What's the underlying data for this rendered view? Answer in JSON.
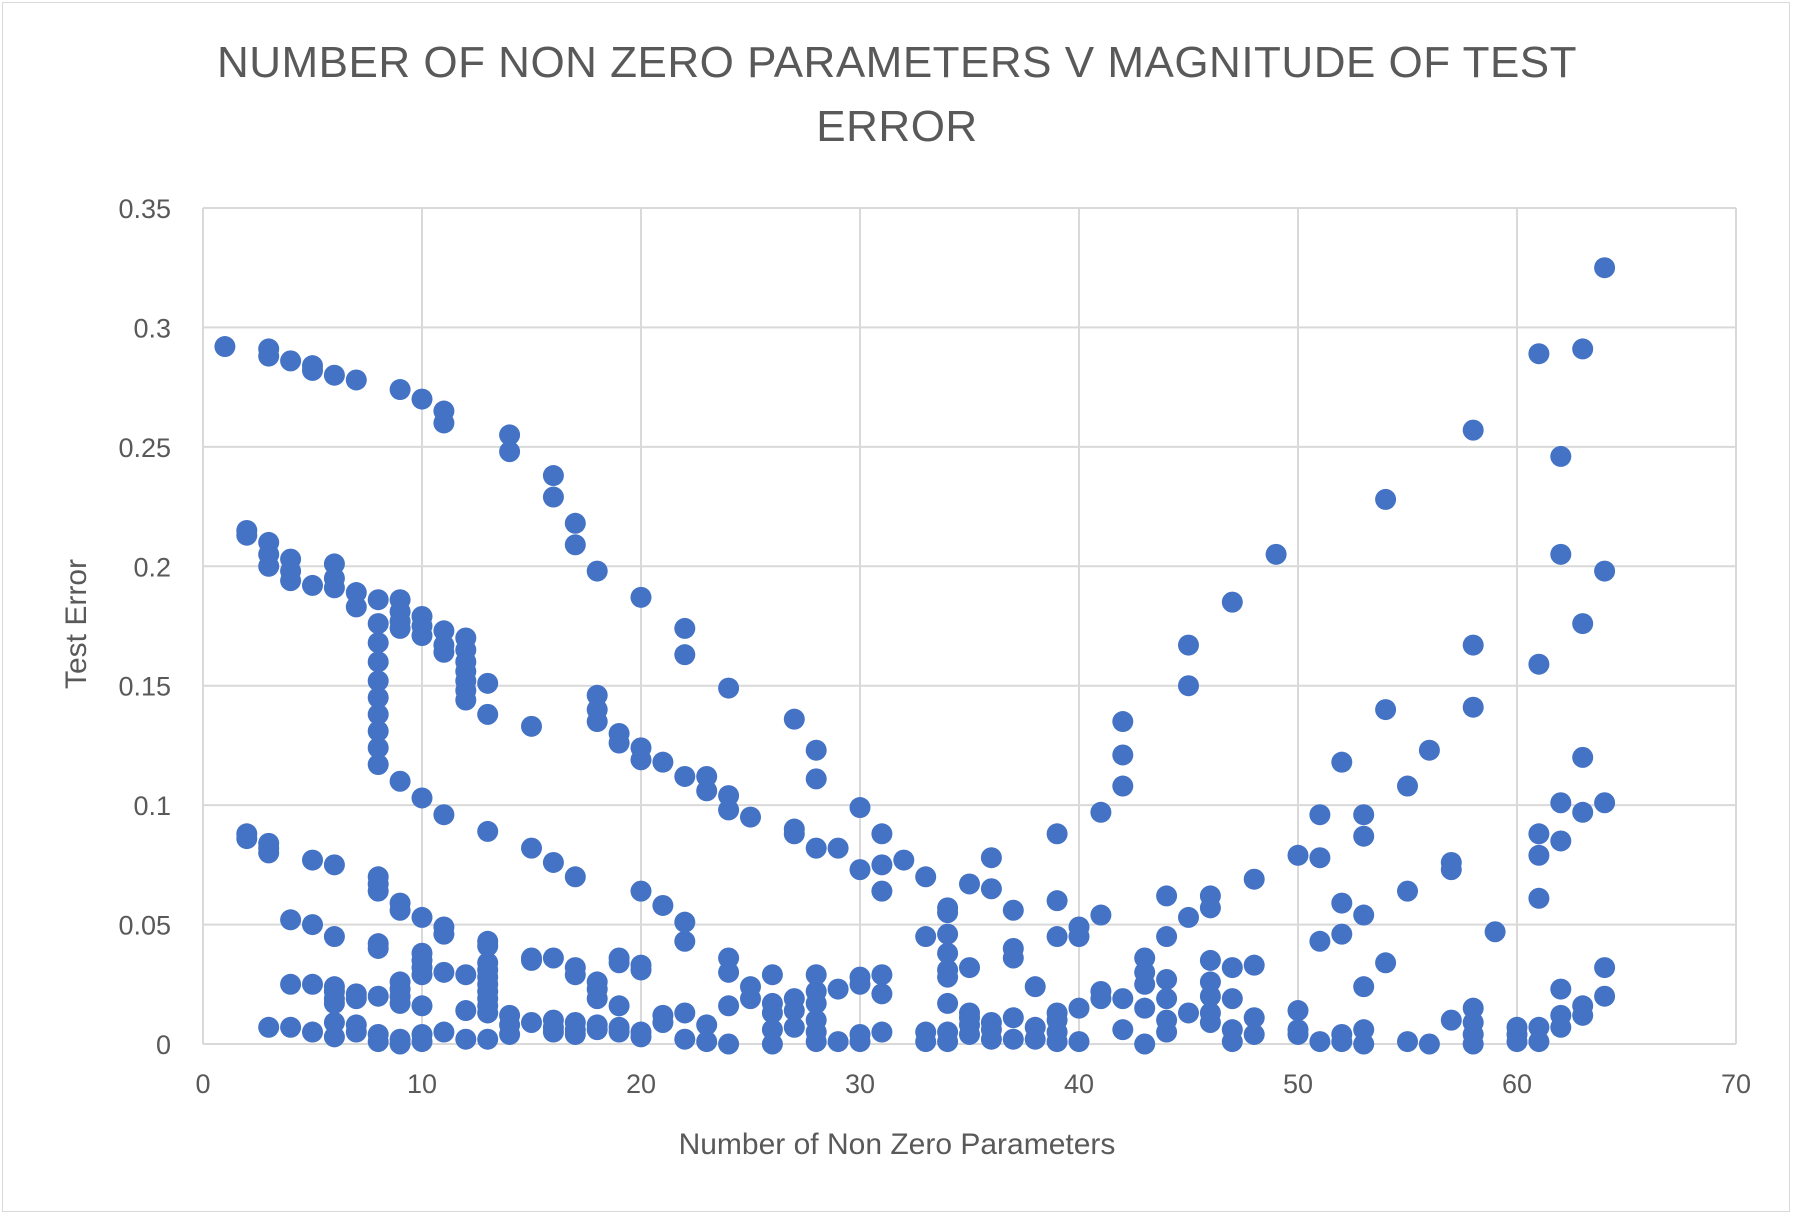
{
  "chart_data": {
    "type": "scatter",
    "title": "NUMBER OF NON ZERO PARAMETERS V MAGNITUDE OF TEST ERROR",
    "title_lines": [
      "NUMBER OF NON ZERO PARAMETERS V MAGNITUDE OF TEST",
      "ERROR"
    ],
    "xlabel": "Number of Non Zero Parameters",
    "ylabel": "Test Error",
    "xlim": [
      0,
      70
    ],
    "ylim": [
      0,
      0.35
    ],
    "xticks": [
      "0",
      "10",
      "20",
      "30",
      "40",
      "50",
      "60",
      "70"
    ],
    "yticks": [
      "0",
      "0.05",
      "0.1",
      "0.15",
      "0.2",
      "0.25",
      "0.3",
      "0.35"
    ],
    "grid": true,
    "legend": "none",
    "marker_color": "#4472c4",
    "points": [
      [
        1,
        0.292
      ],
      [
        3,
        0.291
      ],
      [
        3,
        0.288
      ],
      [
        4,
        0.286
      ],
      [
        5,
        0.284
      ],
      [
        5,
        0.282
      ],
      [
        6,
        0.28
      ],
      [
        7,
        0.278
      ],
      [
        9,
        0.274
      ],
      [
        10,
        0.27
      ],
      [
        11,
        0.265
      ],
      [
        11,
        0.26
      ],
      [
        14,
        0.255
      ],
      [
        14,
        0.248
      ],
      [
        16,
        0.238
      ],
      [
        16,
        0.229
      ],
      [
        17,
        0.218
      ],
      [
        17,
        0.209
      ],
      [
        18,
        0.198
      ],
      [
        20,
        0.187
      ],
      [
        22,
        0.174
      ],
      [
        22,
        0.163
      ],
      [
        24,
        0.149
      ],
      [
        27,
        0.136
      ],
      [
        28,
        0.123
      ],
      [
        28,
        0.111
      ],
      [
        30,
        0.099
      ],
      [
        31,
        0.088
      ],
      [
        31,
        0.075
      ],
      [
        32,
        0.077
      ],
      [
        33,
        0.07
      ],
      [
        35,
        0.067
      ],
      [
        36,
        0.065
      ],
      [
        2,
        0.215
      ],
      [
        2,
        0.213
      ],
      [
        3,
        0.21
      ],
      [
        3,
        0.205
      ],
      [
        3,
        0.2
      ],
      [
        4,
        0.203
      ],
      [
        4,
        0.198
      ],
      [
        4,
        0.194
      ],
      [
        5,
        0.192
      ],
      [
        6,
        0.201
      ],
      [
        6,
        0.195
      ],
      [
        6,
        0.191
      ],
      [
        7,
        0.189
      ],
      [
        7,
        0.183
      ],
      [
        8,
        0.186
      ],
      [
        8,
        0.176
      ],
      [
        8,
        0.168
      ],
      [
        8,
        0.16
      ],
      [
        8,
        0.152
      ],
      [
        8,
        0.145
      ],
      [
        8,
        0.138
      ],
      [
        8,
        0.131
      ],
      [
        8,
        0.124
      ],
      [
        8,
        0.117
      ],
      [
        9,
        0.186
      ],
      [
        9,
        0.181
      ],
      [
        9,
        0.177
      ],
      [
        9,
        0.174
      ],
      [
        10,
        0.179
      ],
      [
        10,
        0.175
      ],
      [
        10,
        0.171
      ],
      [
        11,
        0.173
      ],
      [
        11,
        0.167
      ],
      [
        11,
        0.164
      ],
      [
        12,
        0.17
      ],
      [
        12,
        0.165
      ],
      [
        12,
        0.16
      ],
      [
        12,
        0.156
      ],
      [
        12,
        0.152
      ],
      [
        12,
        0.148
      ],
      [
        12,
        0.144
      ],
      [
        13,
        0.151
      ],
      [
        13,
        0.138
      ],
      [
        18,
        0.146
      ],
      [
        18,
        0.14
      ],
      [
        18,
        0.135
      ],
      [
        19,
        0.13
      ],
      [
        19,
        0.126
      ],
      [
        20,
        0.124
      ],
      [
        20,
        0.119
      ],
      [
        21,
        0.118
      ],
      [
        22,
        0.112
      ],
      [
        23,
        0.112
      ],
      [
        23,
        0.106
      ],
      [
        24,
        0.104
      ],
      [
        24,
        0.098
      ],
      [
        25,
        0.095
      ],
      [
        27,
        0.09
      ],
      [
        27,
        0.088
      ],
      [
        28,
        0.082
      ],
      [
        29,
        0.082
      ],
      [
        30,
        0.073
      ],
      [
        31,
        0.064
      ],
      [
        9,
        0.11
      ],
      [
        10,
        0.103
      ],
      [
        11,
        0.096
      ],
      [
        13,
        0.089
      ],
      [
        15,
        0.133
      ],
      [
        15,
        0.082
      ],
      [
        16,
        0.076
      ],
      [
        17,
        0.07
      ],
      [
        20,
        0.064
      ],
      [
        21,
        0.058
      ],
      [
        22,
        0.051
      ],
      [
        22,
        0.043
      ],
      [
        2,
        0.088
      ],
      [
        2,
        0.086
      ],
      [
        3,
        0.084
      ],
      [
        3,
        0.082
      ],
      [
        3,
        0.08
      ],
      [
        5,
        0.077
      ],
      [
        6,
        0.075
      ],
      [
        8,
        0.07
      ],
      [
        8,
        0.067
      ],
      [
        8,
        0.064
      ],
      [
        9,
        0.059
      ],
      [
        9,
        0.056
      ],
      [
        10,
        0.053
      ],
      [
        11,
        0.049
      ],
      [
        11,
        0.046
      ],
      [
        13,
        0.043
      ],
      [
        13,
        0.041
      ],
      [
        4,
        0.052
      ],
      [
        5,
        0.05
      ],
      [
        6,
        0.045
      ],
      [
        8,
        0.042
      ],
      [
        8,
        0.04
      ],
      [
        10,
        0.038
      ],
      [
        10,
        0.035
      ],
      [
        10,
        0.032
      ],
      [
        10,
        0.029
      ],
      [
        11,
        0.03
      ],
      [
        12,
        0.029
      ],
      [
        13,
        0.034
      ],
      [
        13,
        0.031
      ],
      [
        13,
        0.028
      ],
      [
        13,
        0.025
      ],
      [
        13,
        0.022
      ],
      [
        13,
        0.019
      ],
      [
        13,
        0.016
      ],
      [
        13,
        0.013
      ],
      [
        4,
        0.025
      ],
      [
        5,
        0.025
      ],
      [
        6,
        0.024
      ],
      [
        6,
        0.022
      ],
      [
        6,
        0.019
      ],
      [
        6,
        0.017
      ],
      [
        7,
        0.021
      ],
      [
        7,
        0.019
      ],
      [
        8,
        0.02
      ],
      [
        9,
        0.026
      ],
      [
        9,
        0.023
      ],
      [
        9,
        0.02
      ],
      [
        9,
        0.017
      ],
      [
        10,
        0.016
      ],
      [
        12,
        0.014
      ],
      [
        15,
        0.036
      ],
      [
        15,
        0.035
      ],
      [
        16,
        0.036
      ],
      [
        17,
        0.032
      ],
      [
        17,
        0.029
      ],
      [
        18,
        0.026
      ],
      [
        18,
        0.023
      ],
      [
        18,
        0.019
      ],
      [
        19,
        0.036
      ],
      [
        19,
        0.034
      ],
      [
        19,
        0.016
      ],
      [
        20,
        0.033
      ],
      [
        20,
        0.031
      ],
      [
        21,
        0.012
      ],
      [
        21,
        0.009
      ],
      [
        22,
        0.013
      ],
      [
        24,
        0.036
      ],
      [
        24,
        0.03
      ],
      [
        24,
        0.016
      ],
      [
        25,
        0.024
      ],
      [
        25,
        0.019
      ],
      [
        26,
        0.029
      ],
      [
        26,
        0.017
      ],
      [
        26,
        0.013
      ],
      [
        27,
        0.019
      ],
      [
        27,
        0.014
      ],
      [
        28,
        0.029
      ],
      [
        28,
        0.022
      ],
      [
        28,
        0.017
      ],
      [
        28,
        0.01
      ],
      [
        29,
        0.023
      ],
      [
        30,
        0.028
      ],
      [
        30,
        0.025
      ],
      [
        31,
        0.029
      ],
      [
        31,
        0.021
      ],
      [
        3,
        0.007
      ],
      [
        4,
        0.007
      ],
      [
        5,
        0.005
      ],
      [
        6,
        0.009
      ],
      [
        6,
        0.003
      ],
      [
        7,
        0.008
      ],
      [
        7,
        0.005
      ],
      [
        8,
        0.004
      ],
      [
        8,
        0.001
      ],
      [
        9,
        0.002
      ],
      [
        9,
        0.0
      ],
      [
        10,
        0.004
      ],
      [
        10,
        0.001
      ],
      [
        11,
        0.005
      ],
      [
        12,
        0.002
      ],
      [
        13,
        0.002
      ],
      [
        14,
        0.012
      ],
      [
        14,
        0.008
      ],
      [
        14,
        0.004
      ],
      [
        15,
        0.009
      ],
      [
        16,
        0.01
      ],
      [
        16,
        0.007
      ],
      [
        16,
        0.005
      ],
      [
        17,
        0.009
      ],
      [
        17,
        0.006
      ],
      [
        17,
        0.004
      ],
      [
        18,
        0.008
      ],
      [
        18,
        0.006
      ],
      [
        19,
        0.007
      ],
      [
        19,
        0.005
      ],
      [
        20,
        0.005
      ],
      [
        20,
        0.003
      ],
      [
        22,
        0.002
      ],
      [
        23,
        0.008
      ],
      [
        23,
        0.001
      ],
      [
        24,
        0.0
      ],
      [
        26,
        0.006
      ],
      [
        26,
        0.0
      ],
      [
        27,
        0.007
      ],
      [
        28,
        0.005
      ],
      [
        28,
        0.001
      ],
      [
        29,
        0.001
      ],
      [
        30,
        0.004
      ],
      [
        30,
        0.001
      ],
      [
        31,
        0.005
      ],
      [
        33,
        0.045
      ],
      [
        33,
        0.005
      ],
      [
        33,
        0.001
      ],
      [
        34,
        0.057
      ],
      [
        34,
        0.055
      ],
      [
        34,
        0.046
      ],
      [
        34,
        0.038
      ],
      [
        34,
        0.031
      ],
      [
        34,
        0.028
      ],
      [
        34,
        0.017
      ],
      [
        34,
        0.005
      ],
      [
        34,
        0.001
      ],
      [
        35,
        0.032
      ],
      [
        35,
        0.013
      ],
      [
        35,
        0.011
      ],
      [
        35,
        0.008
      ],
      [
        35,
        0.004
      ],
      [
        36,
        0.078
      ],
      [
        36,
        0.009
      ],
      [
        36,
        0.006
      ],
      [
        36,
        0.002
      ],
      [
        37,
        0.056
      ],
      [
        37,
        0.04
      ],
      [
        37,
        0.036
      ],
      [
        37,
        0.011
      ],
      [
        37,
        0.002
      ],
      [
        38,
        0.024
      ],
      [
        38,
        0.007
      ],
      [
        38,
        0.002
      ],
      [
        39,
        0.088
      ],
      [
        39,
        0.06
      ],
      [
        39,
        0.045
      ],
      [
        39,
        0.013
      ],
      [
        39,
        0.01
      ],
      [
        39,
        0.005
      ],
      [
        39,
        0.001
      ],
      [
        40,
        0.049
      ],
      [
        40,
        0.045
      ],
      [
        40,
        0.015
      ],
      [
        40,
        0.001
      ],
      [
        41,
        0.097
      ],
      [
        41,
        0.054
      ],
      [
        41,
        0.022
      ],
      [
        41,
        0.019
      ],
      [
        42,
        0.135
      ],
      [
        42,
        0.121
      ],
      [
        42,
        0.108
      ],
      [
        42,
        0.019
      ],
      [
        42,
        0.006
      ],
      [
        43,
        0.036
      ],
      [
        43,
        0.03
      ],
      [
        43,
        0.025
      ],
      [
        43,
        0.015
      ],
      [
        43,
        0.0
      ],
      [
        44,
        0.062
      ],
      [
        44,
        0.045
      ],
      [
        44,
        0.027
      ],
      [
        44,
        0.019
      ],
      [
        44,
        0.01
      ],
      [
        44,
        0.005
      ],
      [
        45,
        0.167
      ],
      [
        45,
        0.15
      ],
      [
        45,
        0.053
      ],
      [
        45,
        0.013
      ],
      [
        46,
        0.062
      ],
      [
        46,
        0.057
      ],
      [
        46,
        0.035
      ],
      [
        46,
        0.026
      ],
      [
        46,
        0.02
      ],
      [
        46,
        0.013
      ],
      [
        46,
        0.009
      ],
      [
        47,
        0.185
      ],
      [
        47,
        0.032
      ],
      [
        47,
        0.019
      ],
      [
        47,
        0.006
      ],
      [
        47,
        0.001
      ],
      [
        48,
        0.069
      ],
      [
        48,
        0.033
      ],
      [
        48,
        0.011
      ],
      [
        48,
        0.004
      ],
      [
        49,
        0.205
      ],
      [
        50,
        0.079
      ],
      [
        50,
        0.014
      ],
      [
        50,
        0.006
      ],
      [
        50,
        0.004
      ],
      [
        51,
        0.096
      ],
      [
        51,
        0.078
      ],
      [
        51,
        0.043
      ],
      [
        51,
        0.001
      ],
      [
        52,
        0.118
      ],
      [
        52,
        0.059
      ],
      [
        52,
        0.046
      ],
      [
        52,
        0.004
      ],
      [
        52,
        0.001
      ],
      [
        53,
        0.096
      ],
      [
        53,
        0.087
      ],
      [
        53,
        0.054
      ],
      [
        53,
        0.024
      ],
      [
        53,
        0.006
      ],
      [
        53,
        0.0
      ],
      [
        54,
        0.228
      ],
      [
        54,
        0.14
      ],
      [
        54,
        0.034
      ],
      [
        55,
        0.108
      ],
      [
        55,
        0.064
      ],
      [
        55,
        0.001
      ],
      [
        56,
        0.123
      ],
      [
        56,
        0.0
      ],
      [
        57,
        0.076
      ],
      [
        57,
        0.073
      ],
      [
        57,
        0.01
      ],
      [
        58,
        0.257
      ],
      [
        58,
        0.167
      ],
      [
        58,
        0.141
      ],
      [
        58,
        0.015
      ],
      [
        58,
        0.009
      ],
      [
        58,
        0.004
      ],
      [
        58,
        0.0
      ],
      [
        59,
        0.047
      ],
      [
        60,
        0.007
      ],
      [
        60,
        0.004
      ],
      [
        60,
        0.001
      ],
      [
        61,
        0.289
      ],
      [
        61,
        0.159
      ],
      [
        61,
        0.088
      ],
      [
        61,
        0.079
      ],
      [
        61,
        0.061
      ],
      [
        61,
        0.007
      ],
      [
        61,
        0.001
      ],
      [
        62,
        0.246
      ],
      [
        62,
        0.205
      ],
      [
        62,
        0.101
      ],
      [
        62,
        0.085
      ],
      [
        62,
        0.023
      ],
      [
        62,
        0.012
      ],
      [
        62,
        0.007
      ],
      [
        63,
        0.291
      ],
      [
        63,
        0.176
      ],
      [
        63,
        0.12
      ],
      [
        63,
        0.097
      ],
      [
        63,
        0.016
      ],
      [
        63,
        0.012
      ],
      [
        64,
        0.325
      ],
      [
        64,
        0.198
      ],
      [
        64,
        0.101
      ],
      [
        64,
        0.032
      ],
      [
        64,
        0.02
      ]
    ]
  }
}
